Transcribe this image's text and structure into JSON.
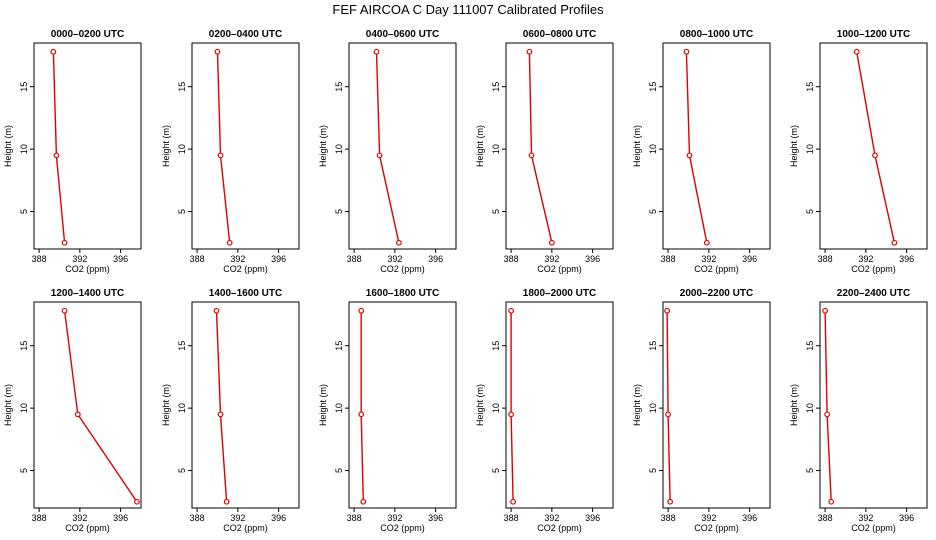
{
  "figure_title": "FEF AIRCOA C  Day 111007  Calibrated Profiles",
  "chart_data": [
    {
      "type": "line",
      "title": "0000–0200 UTC",
      "xlabel": "CO2 (ppm)",
      "ylabel": "Height (m)",
      "xlim": [
        387.5,
        398
      ],
      "ylim": [
        2,
        18.5
      ],
      "xticks": [
        388,
        392,
        396
      ],
      "yticks": [
        5,
        10,
        15
      ],
      "series": [
        {
          "x": [
            389.4,
            389.7,
            390.5
          ],
          "y": [
            17.8,
            9.5,
            2.5
          ]
        }
      ]
    },
    {
      "type": "line",
      "title": "0200–0400 UTC",
      "xlabel": "CO2 (ppm)",
      "ylabel": "Height (m)",
      "xlim": [
        387.5,
        398
      ],
      "ylim": [
        2,
        18.5
      ],
      "xticks": [
        388,
        392,
        396
      ],
      "yticks": [
        5,
        10,
        15
      ],
      "series": [
        {
          "x": [
            390.0,
            390.3,
            391.2
          ],
          "y": [
            17.8,
            9.5,
            2.5
          ]
        }
      ]
    },
    {
      "type": "line",
      "title": "0400–0600 UTC",
      "xlabel": "CO2 (ppm)",
      "ylabel": "Height (m)",
      "xlim": [
        387.5,
        398
      ],
      "ylim": [
        2,
        18.5
      ],
      "xticks": [
        388,
        392,
        396
      ],
      "yticks": [
        5,
        10,
        15
      ],
      "series": [
        {
          "x": [
            390.2,
            390.5,
            392.4
          ],
          "y": [
            17.8,
            9.5,
            2.5
          ]
        }
      ]
    },
    {
      "type": "line",
      "title": "0600–0800 UTC",
      "xlabel": "CO2 (ppm)",
      "ylabel": "Height (m)",
      "xlim": [
        387.5,
        398
      ],
      "ylim": [
        2,
        18.5
      ],
      "xticks": [
        388,
        392,
        396
      ],
      "yticks": [
        5,
        10,
        15
      ],
      "series": [
        {
          "x": [
            389.8,
            390.0,
            392.0
          ],
          "y": [
            17.8,
            9.5,
            2.5
          ]
        }
      ]
    },
    {
      "type": "line",
      "title": "0800–1000 UTC",
      "xlabel": "CO2 (ppm)",
      "ylabel": "Height (m)",
      "xlim": [
        387.5,
        398
      ],
      "ylim": [
        2,
        18.5
      ],
      "xticks": [
        388,
        392,
        396
      ],
      "yticks": [
        5,
        10,
        15
      ],
      "series": [
        {
          "x": [
            389.8,
            390.1,
            391.8
          ],
          "y": [
            17.8,
            9.5,
            2.5
          ]
        }
      ]
    },
    {
      "type": "line",
      "title": "1000–1200 UTC",
      "xlabel": "CO2 (ppm)",
      "ylabel": "Height (m)",
      "xlim": [
        387.5,
        398
      ],
      "ylim": [
        2,
        18.5
      ],
      "xticks": [
        388,
        392,
        396
      ],
      "yticks": [
        5,
        10,
        15
      ],
      "series": [
        {
          "x": [
            391.1,
            392.9,
            394.8
          ],
          "y": [
            17.8,
            9.5,
            2.5
          ]
        }
      ]
    },
    {
      "type": "line",
      "title": "1200–1400 UTC",
      "xlabel": "CO2 (ppm)",
      "ylabel": "Height (m)",
      "xlim": [
        387.5,
        398
      ],
      "ylim": [
        2,
        18.5
      ],
      "xticks": [
        388,
        392,
        396
      ],
      "yticks": [
        5,
        10,
        15
      ],
      "series": [
        {
          "x": [
            390.5,
            391.8,
            397.6
          ],
          "y": [
            17.8,
            9.5,
            2.5
          ]
        }
      ]
    },
    {
      "type": "line",
      "title": "1400–1600 UTC",
      "xlabel": "CO2 (ppm)",
      "ylabel": "Height (m)",
      "xlim": [
        387.5,
        398
      ],
      "ylim": [
        2,
        18.5
      ],
      "xticks": [
        388,
        392,
        396
      ],
      "yticks": [
        5,
        10,
        15
      ],
      "series": [
        {
          "x": [
            389.9,
            390.3,
            390.9
          ],
          "y": [
            17.8,
            9.5,
            2.5
          ]
        }
      ]
    },
    {
      "type": "line",
      "title": "1600–1800 UTC",
      "xlabel": "CO2 (ppm)",
      "ylabel": "Height (m)",
      "xlim": [
        387.5,
        398
      ],
      "ylim": [
        2,
        18.5
      ],
      "xticks": [
        388,
        392,
        396
      ],
      "yticks": [
        5,
        10,
        15
      ],
      "series": [
        {
          "x": [
            388.7,
            388.7,
            388.9
          ],
          "y": [
            17.8,
            9.5,
            2.5
          ]
        }
      ]
    },
    {
      "type": "line",
      "title": "1800–2000 UTC",
      "xlabel": "CO2 (ppm)",
      "ylabel": "Height (m)",
      "xlim": [
        387.5,
        398
      ],
      "ylim": [
        2,
        18.5
      ],
      "xticks": [
        388,
        392,
        396
      ],
      "yticks": [
        5,
        10,
        15
      ],
      "series": [
        {
          "x": [
            388.0,
            388.0,
            388.2
          ],
          "y": [
            17.8,
            9.5,
            2.5
          ]
        }
      ]
    },
    {
      "type": "line",
      "title": "2000–2200 UTC",
      "xlabel": "CO2 (ppm)",
      "ylabel": "Height (m)",
      "xlim": [
        387.5,
        398
      ],
      "ylim": [
        2,
        18.5
      ],
      "xticks": [
        388,
        392,
        396
      ],
      "yticks": [
        5,
        10,
        15
      ],
      "series": [
        {
          "x": [
            387.9,
            388.0,
            388.2
          ],
          "y": [
            17.8,
            9.5,
            2.5
          ]
        }
      ]
    },
    {
      "type": "line",
      "title": "2200–2400 UTC",
      "xlabel": "CO2 (ppm)",
      "ylabel": "Height (m)",
      "xlim": [
        387.5,
        398
      ],
      "ylim": [
        2,
        18.5
      ],
      "xticks": [
        388,
        392,
        396
      ],
      "yticks": [
        5,
        10,
        15
      ],
      "series": [
        {
          "x": [
            388.0,
            388.2,
            388.6
          ],
          "y": [
            17.8,
            9.5,
            2.5
          ]
        }
      ]
    }
  ],
  "colors": {
    "series": "#dd0000",
    "axis": "#000000"
  }
}
